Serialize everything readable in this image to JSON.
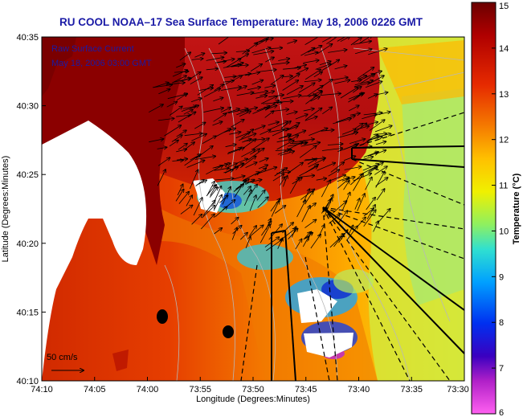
{
  "title": "RU COOL  NOAA–17  Sea Surface Temperature:  May 18, 2006 0226 GMT",
  "legend": {
    "line1": "Raw Surface Current",
    "line2": "May 18, 2006 03:00 GMT"
  },
  "scale": {
    "label": "50 cm/s"
  },
  "axes": {
    "xlabel": "Longitude (Degrees:Minutes)",
    "ylabel": "Latitude (Degrees:Minutes)",
    "xticks": [
      "74:10",
      "74:05",
      "74:00",
      "73:55",
      "73:50",
      "73:45",
      "73:40",
      "73:35",
      "73:30"
    ],
    "yticks": [
      "40:35",
      "40:30",
      "40:25",
      "40:20",
      "40:15",
      "40:10"
    ]
  },
  "colorbar": {
    "label": "Temperature (°C)",
    "ticks": [
      "15",
      "14",
      "13",
      "12",
      "11",
      "10",
      "9",
      "8",
      "7",
      "6"
    ],
    "range": [
      6,
      15
    ]
  },
  "colors": {
    "land": "#ffffff",
    "land_near_shore": "#8b0000",
    "title": "#1a1aa6"
  }
}
